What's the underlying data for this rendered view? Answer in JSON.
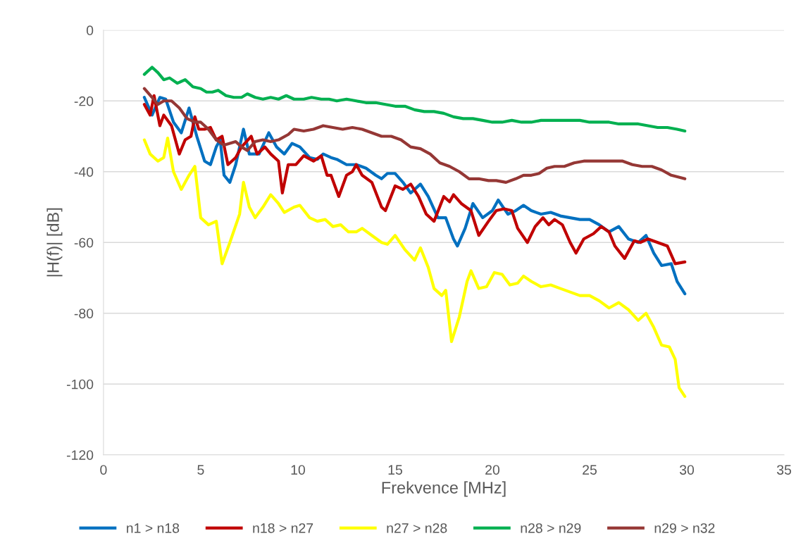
{
  "chart_data": {
    "type": "line",
    "xlabel": "Frekvence [MHz]",
    "ylabel": "|H(f)| [dB]",
    "xlim": [
      0,
      35
    ],
    "xticks": [
      0,
      5,
      10,
      15,
      20,
      25,
      30,
      35
    ],
    "ylim": [
      -120,
      0
    ],
    "yticks": [
      -120,
      -100,
      -80,
      -60,
      -40,
      -20,
      0
    ],
    "grid": "y",
    "legend": "bottom",
    "marker": "none",
    "line_style": "solid",
    "series": [
      {
        "name": "n1 > n18",
        "color": "#0070c0",
        "x": [
          2.1,
          2.5,
          2.9,
          3.2,
          3.6,
          4.0,
          4.4,
          4.8,
          5.2,
          5.5,
          5.8,
          6.0,
          6.2,
          6.5,
          6.8,
          7.2,
          7.5,
          8.0,
          8.5,
          8.9,
          9.3,
          9.7,
          10.1,
          10.6,
          11.0,
          11.3,
          11.7,
          12.0,
          12.5,
          13.0,
          13.5,
          14.0,
          14.3,
          14.6,
          15.0,
          15.4,
          15.8,
          16.3,
          16.7,
          17.2,
          17.6,
          18.0,
          18.2,
          18.6,
          19.0,
          19.5,
          20.0,
          20.3,
          20.8,
          21.2,
          21.6,
          22.0,
          22.5,
          23.0,
          23.5,
          24.0,
          24.5,
          25.0,
          25.5,
          26.0,
          26.5,
          27.0,
          27.5,
          27.9,
          28.3,
          28.7,
          29.2,
          29.5,
          29.9
        ],
        "values": [
          -19,
          -24,
          -19,
          -19.5,
          -26,
          -29,
          -22,
          -30,
          -37,
          -38,
          -33,
          -31,
          -41,
          -43,
          -38,
          -28,
          -35,
          -35,
          -29,
          -33,
          -35,
          -32,
          -33,
          -36,
          -36.5,
          -35,
          -36,
          -36.5,
          -38,
          -38,
          -39,
          -41,
          -42,
          -40.5,
          -40.5,
          -43,
          -46,
          -43.5,
          -47,
          -53,
          -53,
          -59,
          -61,
          -56,
          -49,
          -53,
          -51,
          -48,
          -52,
          -51,
          -49.5,
          -51,
          -52,
          -51.5,
          -52.5,
          -53,
          -53.5,
          -53.5,
          -55,
          -57,
          -55.5,
          -59,
          -60,
          -58,
          -63,
          -66.5,
          -66,
          -71,
          -74.5
        ]
      },
      {
        "name": "n18 > n27",
        "color": "#c00000",
        "x": [
          2.1,
          2.4,
          2.6,
          2.9,
          3.1,
          3.5,
          3.9,
          4.2,
          4.5,
          4.7,
          4.9,
          5.2,
          5.5,
          5.8,
          6.1,
          6.4,
          6.8,
          7.1,
          7.6,
          7.9,
          8.3,
          8.6,
          9.0,
          9.2,
          9.5,
          9.9,
          10.3,
          10.8,
          11.2,
          11.5,
          11.7,
          12.1,
          12.5,
          12.8,
          13.0,
          13.3,
          13.8,
          14.3,
          14.5,
          15.0,
          15.4,
          15.8,
          16.2,
          16.6,
          17.0,
          17.5,
          17.8,
          18.0,
          18.4,
          18.9,
          19.3,
          19.8,
          20.2,
          20.6,
          21.0,
          21.3,
          21.8,
          22.2,
          22.6,
          22.9,
          23.2,
          23.6,
          24.0,
          24.3,
          24.7,
          25.2,
          25.6,
          26.0,
          26.3,
          26.8,
          27.3,
          27.6,
          28.0,
          28.5,
          29.0,
          29.4,
          29.9
        ],
        "values": [
          -21,
          -24,
          -18.5,
          -27,
          -24,
          -27,
          -35,
          -31,
          -30,
          -24.5,
          -28,
          -28,
          -27.5,
          -31,
          -30,
          -38,
          -36,
          -33,
          -30,
          -35,
          -33,
          -35,
          -37,
          -46,
          -38,
          -38,
          -35.5,
          -37,
          -35.5,
          -41,
          -41,
          -47,
          -41,
          -40,
          -38,
          -41,
          -43,
          -50,
          -51,
          -44,
          -45,
          -43.5,
          -47,
          -52,
          -54,
          -47,
          -48.5,
          -46.5,
          -49,
          -51,
          -58,
          -54,
          -51,
          -50.5,
          -51,
          -56,
          -60,
          -55.5,
          -53,
          -55,
          -53.5,
          -55,
          -60,
          -63,
          -59,
          -57.5,
          -55.5,
          -57,
          -61,
          -64.5,
          -59.5,
          -60,
          -59,
          -60,
          -61,
          -66,
          -65.5
        ]
      },
      {
        "name": "n27 > n28",
        "color": "#ffff00",
        "x": [
          2.1,
          2.4,
          2.8,
          3.1,
          3.3,
          3.6,
          4.0,
          4.4,
          4.7,
          5.0,
          5.4,
          5.8,
          6.1,
          6.5,
          7.0,
          7.2,
          7.5,
          7.8,
          8.2,
          8.6,
          9.0,
          9.3,
          9.8,
          10.1,
          10.6,
          11.0,
          11.4,
          11.8,
          12.2,
          12.6,
          13.0,
          13.3,
          13.8,
          14.3,
          14.6,
          15.0,
          15.5,
          16.0,
          16.3,
          16.7,
          17.0,
          17.4,
          17.6,
          17.9,
          18.3,
          18.7,
          18.9,
          19.3,
          19.7,
          20.1,
          20.5,
          20.9,
          21.3,
          21.6,
          22.0,
          22.5,
          23.0,
          23.5,
          24.0,
          24.5,
          25.0,
          25.5,
          26.0,
          26.5,
          27.0,
          27.5,
          27.9,
          28.3,
          28.7,
          29.1,
          29.4,
          29.6,
          29.9
        ],
        "values": [
          -31,
          -35,
          -37,
          -36,
          -30.5,
          -40,
          -45,
          -41,
          -38.5,
          -53,
          -55,
          -54,
          -66,
          -60,
          -52,
          -43,
          -50,
          -53,
          -50,
          -46.5,
          -49,
          -51.5,
          -50,
          -49.5,
          -53,
          -54,
          -53.5,
          -55.5,
          -55,
          -57,
          -57,
          -56,
          -58,
          -60,
          -60.5,
          -58,
          -62,
          -65,
          -61.5,
          -67,
          -73,
          -75,
          -73.5,
          -88,
          -81,
          -71,
          -68,
          -73,
          -72.5,
          -68.5,
          -69,
          -72,
          -71.5,
          -69.5,
          -71,
          -72.5,
          -72,
          -73,
          -74,
          -75,
          -75,
          -76.5,
          -78.5,
          -77,
          -79,
          -82,
          -80,
          -84,
          -89,
          -89.5,
          -93,
          -101,
          -103.5
        ]
      },
      {
        "name": "n28 > n29",
        "color": "#00b050",
        "x": [
          2.1,
          2.5,
          2.8,
          3.1,
          3.4,
          3.8,
          4.2,
          4.6,
          5.0,
          5.3,
          5.6,
          5.9,
          6.3,
          6.7,
          7.1,
          7.4,
          7.8,
          8.2,
          8.6,
          9.0,
          9.4,
          9.8,
          10.3,
          10.7,
          11.2,
          11.6,
          12.0,
          12.5,
          13.0,
          13.5,
          14.0,
          14.5,
          15.0,
          15.5,
          16.0,
          16.5,
          17.0,
          17.5,
          18.0,
          18.5,
          19.0,
          19.5,
          20.0,
          20.5,
          21.0,
          21.5,
          22.0,
          22.5,
          23.0,
          23.5,
          24.0,
          24.5,
          25.0,
          25.5,
          26.0,
          26.5,
          27.0,
          27.5,
          28.0,
          28.5,
          29.0,
          29.5,
          29.9
        ],
        "values": [
          -12.5,
          -10.5,
          -12,
          -14,
          -13.5,
          -15,
          -14,
          -16,
          -16.5,
          -17.5,
          -17.5,
          -17,
          -18.5,
          -19,
          -19,
          -18,
          -19,
          -19.5,
          -19,
          -19.5,
          -18.5,
          -19.5,
          -19.5,
          -19,
          -19.5,
          -19.5,
          -20,
          -19.5,
          -20,
          -20.5,
          -20.5,
          -21,
          -21.5,
          -21.5,
          -22.5,
          -23,
          -23,
          -23.5,
          -24.5,
          -25,
          -25,
          -25.5,
          -26,
          -26,
          -25.5,
          -26,
          -26,
          -25.5,
          -25.5,
          -25.5,
          -25.5,
          -25.5,
          -26,
          -26,
          -26,
          -26.5,
          -26.5,
          -26.5,
          -27,
          -27.5,
          -27.5,
          -28,
          -28.5
        ]
      },
      {
        "name": "n29 > n32",
        "color": "#953735",
        "x": [
          2.1,
          2.5,
          2.8,
          3.1,
          3.5,
          3.9,
          4.3,
          4.7,
          5.0,
          5.4,
          5.8,
          6.2,
          6.5,
          6.8,
          7.1,
          7.4,
          7.8,
          8.2,
          8.6,
          9.0,
          9.5,
          9.8,
          10.3,
          10.8,
          11.3,
          11.8,
          12.3,
          12.8,
          13.3,
          13.8,
          14.3,
          14.8,
          15.3,
          15.8,
          16.3,
          16.8,
          17.3,
          17.8,
          18.3,
          18.8,
          19.3,
          19.8,
          20.2,
          20.7,
          21.2,
          21.6,
          22.0,
          22.4,
          22.8,
          23.2,
          23.7,
          24.2,
          24.7,
          25.2,
          25.7,
          26.2,
          26.7,
          27.2,
          27.7,
          28.2,
          28.7,
          29.2,
          29.9
        ],
        "values": [
          -16.5,
          -19,
          -21,
          -20,
          -20,
          -22,
          -25,
          -26,
          -26,
          -28,
          -31,
          -32.5,
          -32,
          -31.5,
          -33,
          -34,
          -31.5,
          -31,
          -31.5,
          -31,
          -29.5,
          -28,
          -28.5,
          -28,
          -27,
          -27.5,
          -28,
          -27.5,
          -28,
          -29,
          -30,
          -30,
          -31,
          -33,
          -33.5,
          -35,
          -37.5,
          -38.5,
          -40,
          -42,
          -42,
          -42.5,
          -42.5,
          -43,
          -42,
          -41,
          -41,
          -40.5,
          -39,
          -38.5,
          -38.5,
          -37.5,
          -37,
          -37,
          -37,
          -37,
          -37,
          -38,
          -38.5,
          -38.5,
          -39.5,
          -41,
          -42
        ]
      }
    ]
  }
}
